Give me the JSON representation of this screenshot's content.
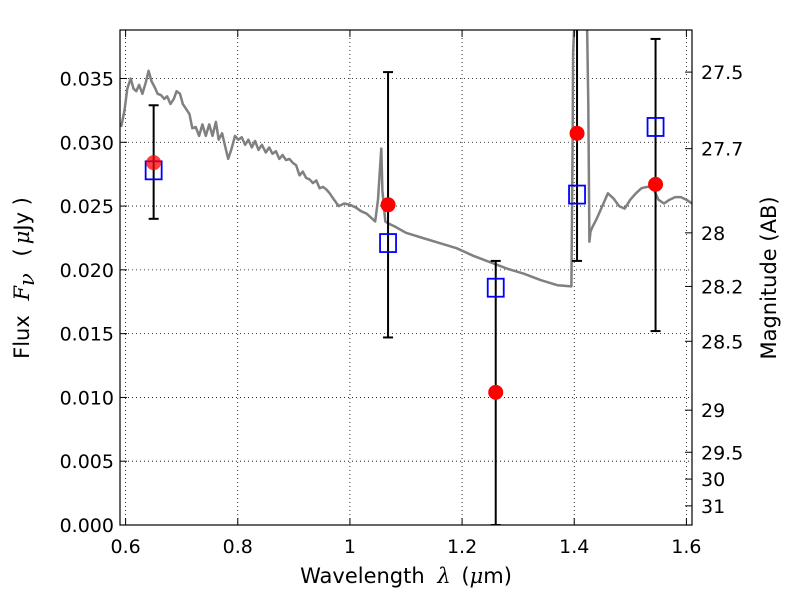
{
  "chart_data": {
    "type": "scatter",
    "title": "",
    "xlabel": {
      "prefix": "Wavelength",
      "symbol": "λ",
      "unit_open": "(",
      "unit_mu": "μ",
      "unit_rest": "m)"
    },
    "ylabel": {
      "prefix": "Flux",
      "symbol": "F",
      "subscript": "ν",
      "unit_open": "(",
      "unit_mu": "μ",
      "unit_rest": "Jy )"
    },
    "y2label": "Magnitude (AB)",
    "xlim": [
      0.59,
      1.61
    ],
    "ylim": [
      0.0,
      0.0388
    ],
    "grid": true,
    "grid_style": "dotted",
    "x_ticks": [
      {
        "value": 0.6,
        "label": "0.6"
      },
      {
        "value": 0.8,
        "label": "0.8"
      },
      {
        "value": 1.0,
        "label": "1"
      },
      {
        "value": 1.2,
        "label": "1.2"
      },
      {
        "value": 1.4,
        "label": "1.4"
      },
      {
        "value": 1.6,
        "label": "1.6"
      }
    ],
    "y_ticks": [
      {
        "value": 0.0,
        "label": "0.000"
      },
      {
        "value": 0.005,
        "label": "0.005"
      },
      {
        "value": 0.01,
        "label": "0.010"
      },
      {
        "value": 0.015,
        "label": "0.015"
      },
      {
        "value": 0.02,
        "label": "0.020"
      },
      {
        "value": 0.025,
        "label": "0.025"
      },
      {
        "value": 0.03,
        "label": "0.030"
      },
      {
        "value": 0.035,
        "label": "0.035"
      }
    ],
    "y2_ticks": [
      {
        "flux": 0.0355,
        "label": "27.5"
      },
      {
        "flux": 0.0295,
        "label": "27.7"
      },
      {
        "flux": 0.0229,
        "label": "28"
      },
      {
        "flux": 0.0187,
        "label": "28.2"
      },
      {
        "flux": 0.0144,
        "label": "28.5"
      },
      {
        "flux": 0.009,
        "label": "29"
      },
      {
        "flux": 0.0057,
        "label": "29.5"
      },
      {
        "flux": 0.0036,
        "label": "30"
      },
      {
        "flux": 0.0015,
        "label": "31"
      }
    ],
    "series": [
      {
        "name": "model-spectrum",
        "kind": "line",
        "color": "#808080",
        "x": [
          0.592,
          0.598,
          0.603,
          0.609,
          0.614,
          0.619,
          0.624,
          0.63,
          0.636,
          0.641,
          0.646,
          0.652,
          0.657,
          0.663,
          0.669,
          0.674,
          0.68,
          0.686,
          0.691,
          0.697,
          0.702,
          0.708,
          0.714,
          0.719,
          0.725,
          0.731,
          0.737,
          0.743,
          0.749,
          0.755,
          0.761,
          0.766,
          0.772,
          0.778,
          0.783,
          0.789,
          0.795,
          0.801,
          0.807,
          0.813,
          0.819,
          0.825,
          0.831,
          0.837,
          0.843,
          0.85,
          0.856,
          0.862,
          0.868,
          0.874,
          0.88,
          0.886,
          0.892,
          0.898,
          0.904,
          0.91,
          0.916,
          0.922,
          0.928,
          0.934,
          0.94,
          0.946,
          0.952,
          0.958,
          0.964,
          0.97,
          0.98,
          0.99,
          1.0,
          1.01,
          1.02,
          1.03,
          1.045,
          1.05,
          1.053,
          1.056,
          1.058,
          1.063,
          1.07,
          1.08,
          1.1,
          1.13,
          1.16,
          1.19,
          1.22,
          1.25,
          1.28,
          1.31,
          1.34,
          1.37,
          1.395,
          1.397,
          1.398,
          1.4,
          1.402,
          1.404,
          1.423,
          1.425,
          1.427,
          1.429,
          1.433,
          1.44,
          1.45,
          1.46,
          1.47,
          1.48,
          1.49,
          1.5,
          1.51,
          1.52,
          1.53,
          1.54,
          1.55,
          1.56,
          1.57,
          1.58,
          1.59,
          1.6,
          1.61
        ],
        "y": [
          0.0312,
          0.0325,
          0.0342,
          0.035,
          0.0342,
          0.034,
          0.0345,
          0.0338,
          0.0347,
          0.0356,
          0.0348,
          0.0343,
          0.0338,
          0.0337,
          0.0334,
          0.0336,
          0.033,
          0.0334,
          0.034,
          0.0338,
          0.033,
          0.0326,
          0.0322,
          0.0311,
          0.0312,
          0.0305,
          0.0314,
          0.0305,
          0.0314,
          0.0305,
          0.0316,
          0.0302,
          0.0307,
          0.0296,
          0.0287,
          0.0295,
          0.0305,
          0.0302,
          0.0304,
          0.0298,
          0.0302,
          0.0296,
          0.0301,
          0.0294,
          0.0298,
          0.0292,
          0.0296,
          0.0291,
          0.0293,
          0.0287,
          0.029,
          0.0286,
          0.0287,
          0.0284,
          0.0282,
          0.0274,
          0.0277,
          0.0272,
          0.0271,
          0.0268,
          0.027,
          0.0264,
          0.0265,
          0.0263,
          0.026,
          0.0256,
          0.025,
          0.0252,
          0.0251,
          0.0249,
          0.0246,
          0.0244,
          0.0238,
          0.0255,
          0.0275,
          0.0295,
          0.0262,
          0.0238,
          0.0236,
          0.0234,
          0.0229,
          0.0225,
          0.0221,
          0.0217,
          0.0211,
          0.0206,
          0.0201,
          0.0197,
          0.0192,
          0.0188,
          0.0187,
          0.03,
          0.037,
          0.039,
          0.039,
          0.039,
          0.039,
          0.033,
          0.0222,
          0.023,
          0.0234,
          0.024,
          0.025,
          0.026,
          0.0256,
          0.025,
          0.0248,
          0.0255,
          0.026,
          0.0264,
          0.0265,
          0.0265,
          0.0255,
          0.0252,
          0.0255,
          0.0257,
          0.0257,
          0.0255,
          0.0252
        ]
      },
      {
        "name": "observed-photometry",
        "kind": "scatter",
        "marker": "circle",
        "color": "#ff0000",
        "x": [
          0.65,
          1.068,
          1.26,
          1.405,
          1.545
        ],
        "y": [
          0.0284,
          0.0251,
          0.0104,
          0.0307,
          0.0267
        ]
      },
      {
        "name": "model-photometry",
        "kind": "scatter",
        "marker": "open-square",
        "color": "#0000ff",
        "x": [
          0.65,
          1.068,
          1.26,
          1.405,
          1.545
        ],
        "y": [
          0.0278,
          0.0221,
          0.0186,
          0.0259,
          0.0312
        ]
      },
      {
        "name": "error-bars",
        "kind": "errorbar",
        "color": "#000000",
        "x": [
          0.65,
          1.068,
          1.26,
          1.405,
          1.545
        ],
        "low": [
          0.024,
          0.0147,
          0.0,
          0.0207,
          0.0152
        ],
        "high": [
          0.0329,
          0.0355,
          0.0207,
          0.04,
          0.0381
        ]
      }
    ]
  }
}
